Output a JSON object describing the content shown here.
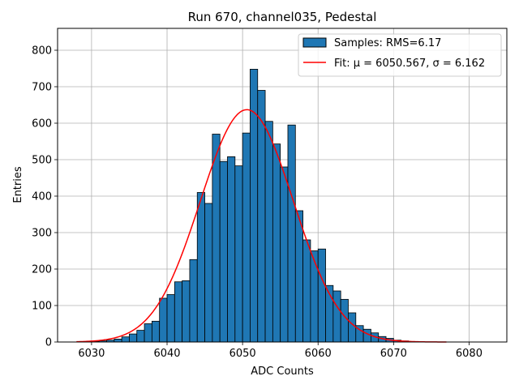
{
  "chart_data": {
    "type": "bar",
    "title": "Run 670, channel035, Pedestal",
    "xlabel": "ADC Counts",
    "ylabel": "Entries",
    "xlim": [
      6025.5,
      6085
    ],
    "ylim": [
      0,
      860
    ],
    "xticks": [
      "6030",
      "6040",
      "6050",
      "6060",
      "6070",
      "6080"
    ],
    "yticks": [
      "0",
      "100",
      "200",
      "300",
      "400",
      "500",
      "600",
      "700",
      "800"
    ],
    "grid": true,
    "legend_position": "top-right",
    "bar_color": "#1f77b4",
    "fit_color": "#ff0000",
    "histogram": {
      "name": "Samples: RMS=6.17",
      "bin_width": 1,
      "bin_starts": [
        6030,
        6031,
        6032,
        6033,
        6034,
        6035,
        6036,
        6037,
        6038,
        6039,
        6040,
        6041,
        6042,
        6043,
        6044,
        6045,
        6046,
        6047,
        6048,
        6049,
        6050,
        6051,
        6052,
        6053,
        6054,
        6055,
        6056,
        6057,
        6058,
        6059,
        6060,
        6061,
        6062,
        6063,
        6064,
        6065,
        6066,
        6067,
        6068,
        6069,
        6070,
        6071
      ],
      "counts": [
        2,
        3,
        5,
        8,
        14,
        22,
        32,
        50,
        57,
        120,
        130,
        165,
        168,
        226,
        410,
        380,
        570,
        495,
        508,
        483,
        573,
        748,
        690,
        605,
        543,
        480,
        595,
        360,
        280,
        250,
        255,
        155,
        140,
        117,
        80,
        45,
        35,
        25,
        15,
        10,
        5,
        3
      ]
    },
    "fit": {
      "name": "Fit: μ = 6050.567, σ = 6.162",
      "mu": 6050.567,
      "sigma": 6.162,
      "amplitude": 637,
      "x_range": [
        6028,
        6077
      ]
    }
  }
}
